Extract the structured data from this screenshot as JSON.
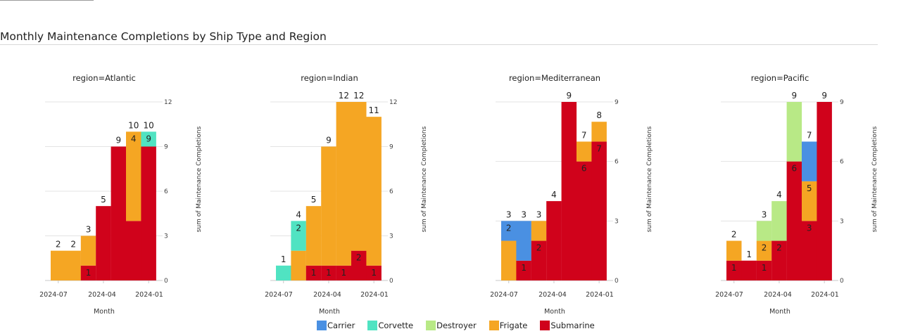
{
  "page": {
    "title": "Monthly Maintenance Completions by Ship Type and Region"
  },
  "chart_data": {
    "type": "bar",
    "stacked": true,
    "xlabel": "Month",
    "ylabel": "sum of Maintenance Completions",
    "x_tick_labels": [
      "2024-07",
      "2024-04",
      "2024-01"
    ],
    "grid": true,
    "legend_placement": "bottom",
    "series": [
      {
        "name": "Carrier",
        "color": "#4a90e2"
      },
      {
        "name": "Corvette",
        "color": "#50e3c2"
      },
      {
        "name": "Destroyer",
        "color": "#b8e986"
      },
      {
        "name": "Frigate",
        "color": "#f5a623"
      },
      {
        "name": "Submarine",
        "color": "#d0021b"
      }
    ],
    "panels": [
      {
        "title": "region=Atlantic",
        "ylim": [
          0,
          12
        ],
        "yticks": [
          "0",
          "3",
          "6",
          "9",
          "12"
        ],
        "bars": [
          {
            "segments": [
              {
                "series": "Frigate",
                "value": 2,
                "label": ""
              }
            ],
            "total": "2"
          },
          {
            "segments": [
              {
                "series": "Frigate",
                "value": 2,
                "label": ""
              }
            ],
            "total": "2"
          },
          {
            "segments": [
              {
                "series": "Submarine",
                "value": 1,
                "label": "1"
              },
              {
                "series": "Frigate",
                "value": 2,
                "label": ""
              }
            ],
            "total": "3"
          },
          {
            "segments": [
              {
                "series": "Submarine",
                "value": 5,
                "label": ""
              }
            ],
            "total": "5"
          },
          {
            "segments": [
              {
                "series": "Submarine",
                "value": 9,
                "label": ""
              }
            ],
            "total": "9"
          },
          {
            "segments": [
              {
                "series": "Submarine",
                "value": 4,
                "label": ""
              },
              {
                "series": "Frigate",
                "value": 6,
                "label": "4"
              }
            ],
            "total": "10"
          },
          {
            "segments": [
              {
                "series": "Submarine",
                "value": 9,
                "label": ""
              },
              {
                "series": "Corvette",
                "value": 1,
                "label": "9"
              }
            ],
            "total": "10"
          }
        ]
      },
      {
        "title": "region=Indian",
        "ylim": [
          0,
          12
        ],
        "yticks": [
          "0",
          "3",
          "6",
          "9",
          "12"
        ],
        "bars": [
          {
            "segments": [
              {
                "series": "Corvette",
                "value": 1,
                "label": ""
              }
            ],
            "total": "1"
          },
          {
            "segments": [
              {
                "series": "Frigate",
                "value": 2,
                "label": ""
              },
              {
                "series": "Corvette",
                "value": 2,
                "label": "2"
              }
            ],
            "total": "4"
          },
          {
            "segments": [
              {
                "series": "Submarine",
                "value": 1,
                "label": "1"
              },
              {
                "series": "Frigate",
                "value": 4,
                "label": ""
              }
            ],
            "total": "5"
          },
          {
            "segments": [
              {
                "series": "Submarine",
                "value": 1,
                "label": "1"
              },
              {
                "series": "Frigate",
                "value": 8,
                "label": ""
              }
            ],
            "total": "9"
          },
          {
            "segments": [
              {
                "series": "Submarine",
                "value": 1,
                "label": "1"
              },
              {
                "series": "Frigate",
                "value": 11,
                "label": ""
              }
            ],
            "total": "12"
          },
          {
            "segments": [
              {
                "series": "Submarine",
                "value": 2,
                "label": "2"
              },
              {
                "series": "Frigate",
                "value": 10,
                "label": ""
              }
            ],
            "total": "12"
          },
          {
            "segments": [
              {
                "series": "Submarine",
                "value": 1,
                "label": "1"
              },
              {
                "series": "Frigate",
                "value": 10,
                "label": ""
              }
            ],
            "total": "11"
          }
        ]
      },
      {
        "title": "region=Mediterranean",
        "ylim": [
          0,
          9
        ],
        "yticks": [
          "0",
          "3",
          "6",
          "9"
        ],
        "bars": [
          {
            "segments": [
              {
                "series": "Frigate",
                "value": 2,
                "label": ""
              },
              {
                "series": "Carrier",
                "value": 1,
                "label": "2"
              }
            ],
            "total": "3"
          },
          {
            "segments": [
              {
                "series": "Submarine",
                "value": 1,
                "label": "1"
              },
              {
                "series": "Carrier",
                "value": 2,
                "label": ""
              }
            ],
            "total": "3"
          },
          {
            "segments": [
              {
                "series": "Submarine",
                "value": 2,
                "label": "2"
              },
              {
                "series": "Frigate",
                "value": 1,
                "label": ""
              }
            ],
            "total": "3"
          },
          {
            "segments": [
              {
                "series": "Submarine",
                "value": 4,
                "label": ""
              }
            ],
            "total": "4"
          },
          {
            "segments": [
              {
                "series": "Submarine",
                "value": 9,
                "label": ""
              }
            ],
            "total": "9"
          },
          {
            "segments": [
              {
                "series": "Submarine",
                "value": 6,
                "label": "6"
              },
              {
                "series": "Frigate",
                "value": 1,
                "label": ""
              }
            ],
            "total": "7"
          },
          {
            "segments": [
              {
                "series": "Submarine",
                "value": 7,
                "label": "7"
              },
              {
                "series": "Frigate",
                "value": 1,
                "label": ""
              }
            ],
            "total": "8"
          }
        ]
      },
      {
        "title": "region=Pacific",
        "ylim": [
          0,
          9
        ],
        "yticks": [
          "0",
          "3",
          "6",
          "9"
        ],
        "bars": [
          {
            "segments": [
              {
                "series": "Submarine",
                "value": 1,
                "label": "1"
              },
              {
                "series": "Frigate",
                "value": 1,
                "label": ""
              }
            ],
            "total": "2"
          },
          {
            "segments": [
              {
                "series": "Submarine",
                "value": 1,
                "label": ""
              }
            ],
            "total": "1"
          },
          {
            "segments": [
              {
                "series": "Submarine",
                "value": 1,
                "label": "1"
              },
              {
                "series": "Frigate",
                "value": 1,
                "label": "2"
              },
              {
                "series": "Destroyer",
                "value": 1,
                "label": ""
              }
            ],
            "total": "3"
          },
          {
            "segments": [
              {
                "series": "Submarine",
                "value": 2,
                "label": "2"
              },
              {
                "series": "Destroyer",
                "value": 2,
                "label": ""
              }
            ],
            "total": "4"
          },
          {
            "segments": [
              {
                "series": "Submarine",
                "value": 6,
                "label": "6"
              },
              {
                "series": "Destroyer",
                "value": 3,
                "label": ""
              }
            ],
            "total": "9"
          },
          {
            "segments": [
              {
                "series": "Submarine",
                "value": 3,
                "label": "3"
              },
              {
                "series": "Frigate",
                "value": 2,
                "label": "5"
              },
              {
                "series": "Carrier",
                "value": 2,
                "label": ""
              }
            ],
            "total": "7"
          },
          {
            "segments": [
              {
                "series": "Submarine",
                "value": 9,
                "label": ""
              }
            ],
            "total": "9"
          }
        ]
      }
    ]
  }
}
